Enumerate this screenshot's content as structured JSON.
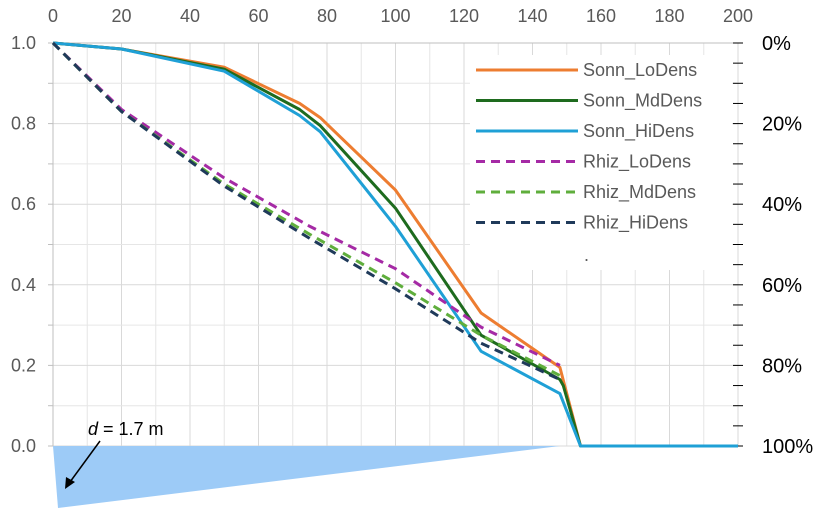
{
  "chart_data": {
    "type": "line",
    "title": "",
    "xlabel": "",
    "ylabel": "",
    "xlim": [
      0,
      200
    ],
    "ylim": [
      0,
      1.0
    ],
    "x_ticks": [
      "0",
      "20",
      "40",
      "60",
      "80",
      "100",
      "120",
      "140",
      "160",
      "180",
      "200"
    ],
    "y_ticks": [
      "0.0",
      "0.2",
      "0.4",
      "0.6",
      "0.8",
      "1.0"
    ],
    "y2_ticks": [
      "100%",
      "80%",
      "60%",
      "40%",
      "20%",
      "0%"
    ],
    "grid": true,
    "legend_position": "top-right",
    "legend_extra": ".",
    "series": [
      {
        "name": "Sonn_LoDens",
        "color": "#ED7D31",
        "dash": false,
        "x": [
          0,
          20,
          50,
          72,
          78,
          100,
          125,
          148,
          154,
          200
        ],
        "y": [
          1.0,
          0.985,
          0.94,
          0.85,
          0.815,
          0.635,
          0.33,
          0.195,
          0.0,
          0.0
        ]
      },
      {
        "name": "Sonn_MdDens",
        "color": "#1E6B1E",
        "dash": false,
        "x": [
          0,
          20,
          50,
          72,
          78,
          100,
          125,
          148,
          149,
          154,
          200
        ],
        "y": [
          1.0,
          0.985,
          0.935,
          0.835,
          0.795,
          0.59,
          0.275,
          0.165,
          0.15,
          0.0,
          0.0
        ]
      },
      {
        "name": "Sonn_HiDens",
        "color": "#1FA0D6",
        "dash": false,
        "x": [
          0,
          20,
          50,
          72,
          78,
          100,
          125,
          148,
          154,
          200
        ],
        "y": [
          1.0,
          0.985,
          0.93,
          0.82,
          0.78,
          0.545,
          0.235,
          0.13,
          0.0,
          0.0
        ]
      },
      {
        "name": "Rhiz_LoDens",
        "color": "#A52AA5",
        "dash": true,
        "x": [
          0,
          20,
          50,
          75,
          100,
          125,
          148
        ],
        "y": [
          1.0,
          0.835,
          0.665,
          0.545,
          0.44,
          0.295,
          0.2
        ]
      },
      {
        "name": "Rhiz_MdDens",
        "color": "#5FAE3C",
        "dash": true,
        "x": [
          0,
          20,
          50,
          75,
          100,
          125,
          148
        ],
        "y": [
          1.0,
          0.83,
          0.65,
          0.525,
          0.405,
          0.275,
          0.175
        ]
      },
      {
        "name": "Rhiz_HiDens",
        "color": "#1F3A5A",
        "dash": true,
        "x": [
          0,
          20,
          50,
          75,
          100,
          125,
          148
        ],
        "y": [
          1.0,
          0.83,
          0.645,
          0.515,
          0.39,
          0.255,
          0.165
        ]
      }
    ],
    "annotation": {
      "d_symbol": "d",
      "d_text": " = 1.7 m",
      "wedge_color": "#9DCBF7",
      "wedge_end_x": 148
    }
  }
}
